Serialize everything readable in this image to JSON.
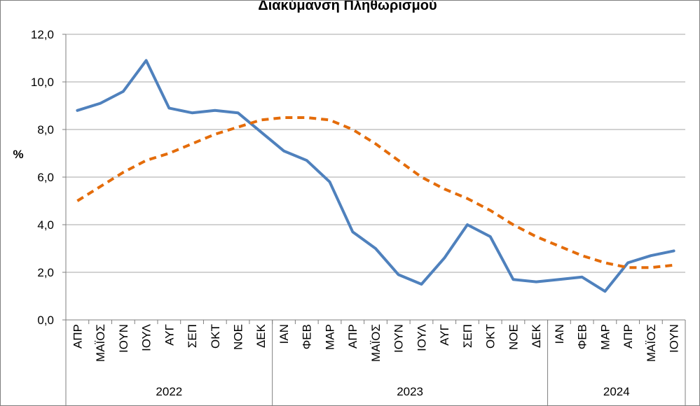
{
  "chart_data": {
    "type": "line",
    "title": "Διακύμανση Πληθωρισμού",
    "ylabel": "%",
    "ylim": [
      0,
      12
    ],
    "yticks": [
      "0,0",
      "2,0",
      "4,0",
      "6,0",
      "8,0",
      "10,0",
      "12,0"
    ],
    "grid": true,
    "categories": [
      "ΑΠΡ",
      "ΜΑΪΟΣ",
      "ΙΟΥΝ",
      "ΙΟΥΛ",
      "ΑΥΓ",
      "ΣΕΠ",
      "ΟΚΤ",
      "ΝΟΕ",
      "ΔΕΚ",
      "ΙΑΝ",
      "ΦΕΒ",
      "ΜΑΡ",
      "ΑΠΡ",
      "ΜΑΪΟΣ",
      "ΙΟΥΝ",
      "ΙΟΥΛ",
      "ΑΥΓ",
      "ΣΕΠ",
      "ΟΚΤ",
      "ΝΟΕ",
      "ΔΕΚ",
      "ΙΑΝ",
      "ΦΕΒ",
      "ΜΑΡ",
      "ΑΠΡ",
      "ΜΑΪΟΣ",
      "ΙΟΥΝ"
    ],
    "groups": [
      {
        "label": "2022",
        "count": 9
      },
      {
        "label": "2023",
        "count": 12
      },
      {
        "label": "2024",
        "count": 6
      }
    ],
    "series": [
      {
        "color": "#4f81bd",
        "style": "solid",
        "values": [
          8.8,
          9.1,
          9.6,
          10.9,
          8.9,
          8.7,
          8.8,
          8.7,
          7.9,
          7.1,
          6.7,
          5.8,
          3.7,
          3.0,
          1.9,
          1.5,
          2.6,
          4.0,
          3.5,
          1.7,
          1.6,
          1.7,
          1.8,
          1.2,
          2.4,
          2.7,
          2.9
        ]
      },
      {
        "color": "#e46c0a",
        "style": "dashed",
        "values": [
          5.0,
          5.6,
          6.2,
          6.7,
          7.0,
          7.4,
          7.8,
          8.1,
          8.4,
          8.5,
          8.5,
          8.4,
          8.0,
          7.4,
          6.7,
          6.0,
          5.5,
          5.1,
          4.6,
          4.0,
          3.5,
          3.1,
          2.7,
          2.4,
          2.2,
          2.2,
          2.3
        ]
      }
    ]
  }
}
